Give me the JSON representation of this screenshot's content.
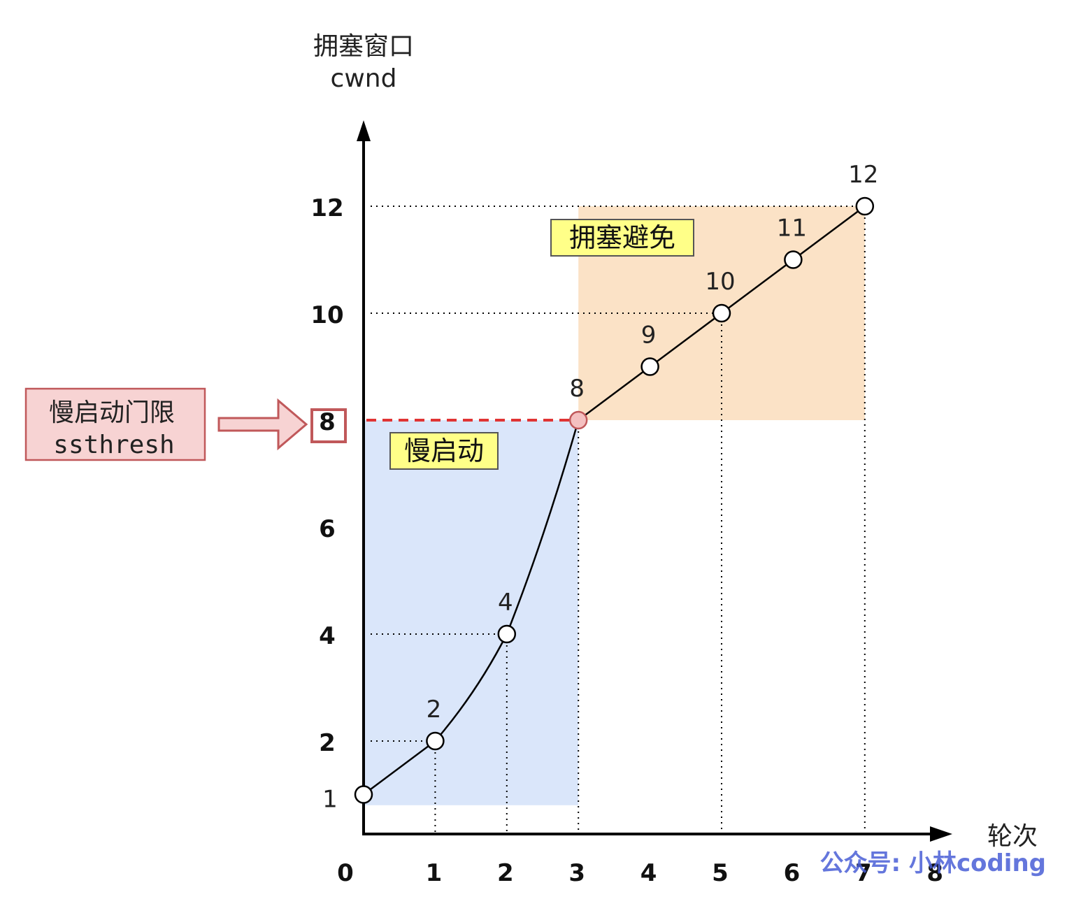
{
  "chart_data": {
    "type": "line",
    "title": "",
    "ylabel_line1": "拥塞窗口",
    "ylabel_line2": "cwnd",
    "xlabel": "轮次",
    "x_ticks": [
      "0",
      "1",
      "2",
      "3",
      "4",
      "5",
      "6",
      "7",
      "8"
    ],
    "y_ticks": [
      "1",
      "2",
      "4",
      "6",
      "8",
      "10",
      "12"
    ],
    "xlim": [
      0,
      8
    ],
    "ylim": [
      0,
      13
    ],
    "series": [
      {
        "x": [
          0,
          1,
          2,
          3,
          4,
          5,
          6,
          7
        ],
        "y": [
          1,
          2,
          4,
          8,
          9,
          10,
          11,
          12
        ],
        "labels": [
          "",
          "2",
          "4",
          "8",
          "9",
          "10",
          "11",
          "12"
        ]
      }
    ],
    "threshold": {
      "value": 8,
      "label": "8"
    },
    "regions": [
      {
        "label": "慢启动",
        "x": [
          0,
          3
        ],
        "y": [
          0.8,
          8
        ],
        "color": "#dae6fa"
      },
      {
        "label": "拥塞避免",
        "x": [
          3,
          7
        ],
        "y": [
          8,
          12
        ],
        "color": "#fbe2c6"
      }
    ],
    "callout": {
      "line1": "慢启动门限",
      "line2": "ssthresh"
    },
    "y_axis_side_label": "1",
    "watermark": "公众号: 小林coding",
    "colors": {
      "slow_start_fill": "#dae6fa",
      "avoid_fill": "#fbe2c6",
      "threshold_line": "#e03434",
      "threshold_point": "#f4c0c0",
      "callout_fill": "#f7d3d3",
      "callout_border": "#c0585a",
      "label_box_fill": "#ffff88"
    }
  }
}
